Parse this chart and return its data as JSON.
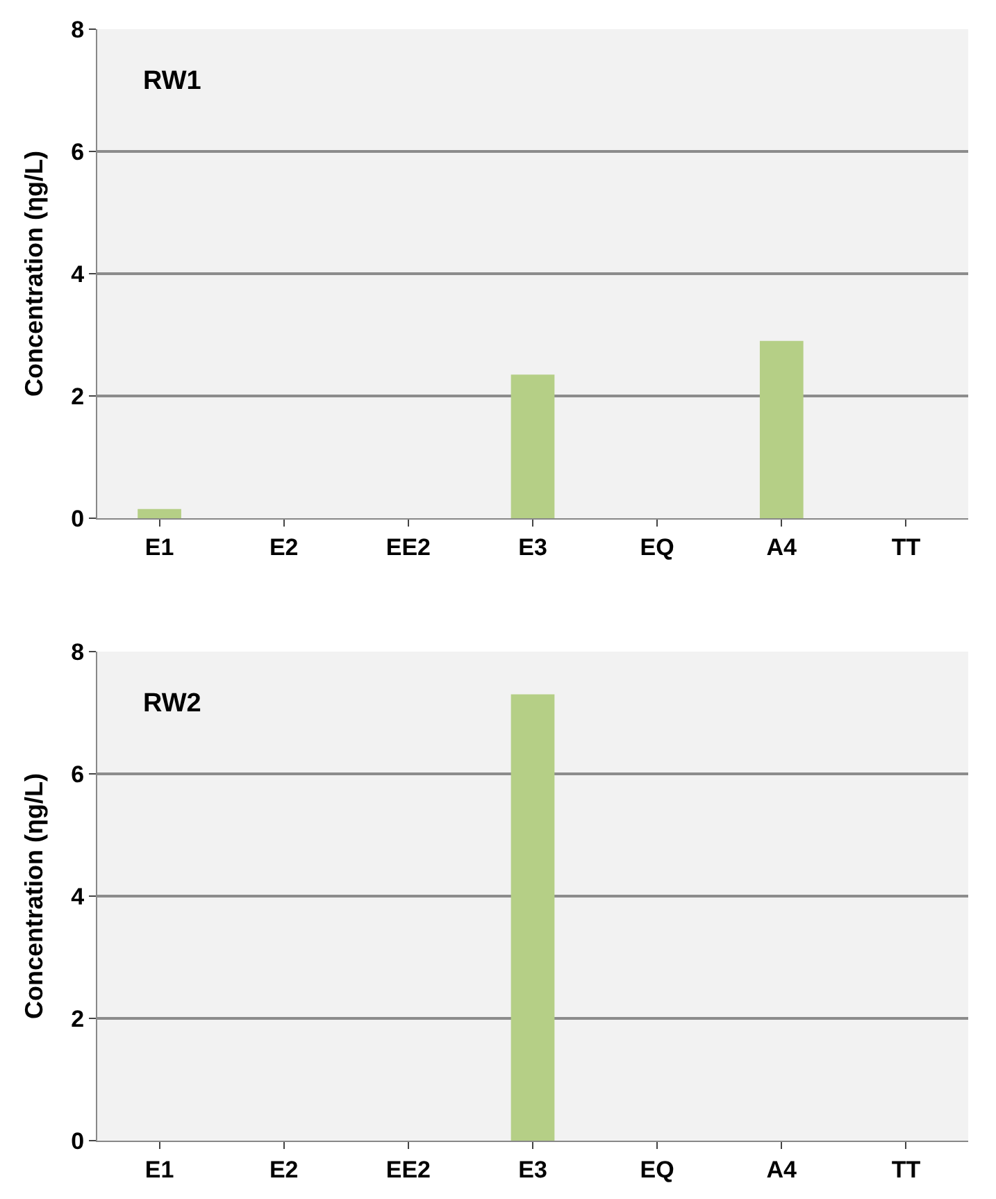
{
  "chart_data": [
    {
      "type": "bar",
      "categories": [
        "E1",
        "E2",
        "EE2",
        "E3",
        "EQ",
        "A4",
        "TT"
      ],
      "values": [
        0.15,
        0,
        0,
        2.35,
        0,
        2.9,
        0
      ],
      "color": "#b5cf86",
      "ylabel": "Concentration (ηg/L)",
      "ylim": [
        0,
        8
      ],
      "yticks": [
        0,
        2,
        4,
        6,
        8
      ],
      "grid": "y",
      "annotations": [
        "RW1"
      ]
    },
    {
      "type": "bar",
      "categories": [
        "E1",
        "E2",
        "EE2",
        "E3",
        "EQ",
        "A4",
        "TT"
      ],
      "values": [
        0,
        0,
        0,
        7.3,
        0,
        0,
        0
      ],
      "color": "#b5cf86",
      "ylabel": "Concentration (ηg/L)",
      "ylim": [
        0,
        8
      ],
      "yticks": [
        0,
        2,
        4,
        6,
        8
      ],
      "grid": "y",
      "annotations": [
        "RW2"
      ]
    }
  ]
}
